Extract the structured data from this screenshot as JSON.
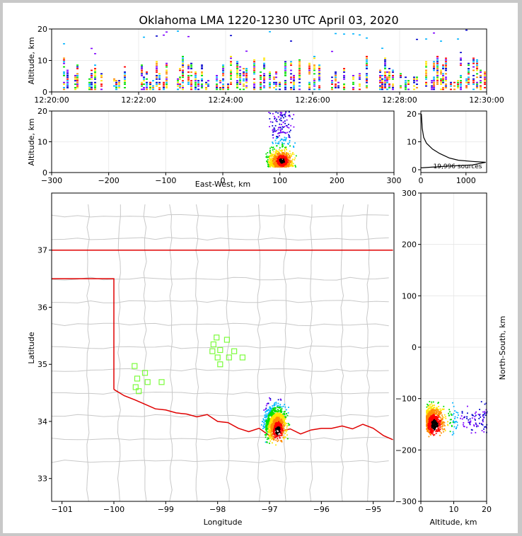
{
  "title": "Oklahoma LMA 1220-1230 UTC April 03, 2020",
  "colors": {
    "frame": "#c8c8c8",
    "state_border": "#e00000",
    "county_line": "#c8c8c8",
    "station": "#7cfc3c",
    "grid": "#e6e6e6",
    "scale": [
      "#0000cc",
      "#7d00ff",
      "#00b4ff",
      "#00e000",
      "#ffe600",
      "#ff8c00",
      "#ff0000",
      "#000000"
    ]
  },
  "panels": {
    "time_height": {
      "ylabel": "Altitude, km",
      "yticks": [
        "0",
        "10",
        "20"
      ],
      "xticks": [
        "12:20:00",
        "12:22:00",
        "12:24:00",
        "12:26:00",
        "12:28:00",
        "12:30:00"
      ]
    },
    "ew_height": {
      "ylabel": "Altitude, km",
      "xlabel": "East-West, km",
      "xticks": [
        "−300",
        "−200",
        "−100",
        "0",
        "100",
        "200",
        "300"
      ],
      "yticks": [
        "0",
        "10",
        "20"
      ]
    },
    "histogram": {
      "xticks": [
        "0",
        "1000"
      ],
      "yticks": [
        "0",
        "10",
        "20"
      ],
      "annotation": "19,996 sources"
    },
    "plan": {
      "xlabel": "Longitude",
      "ylabel": "Latitude",
      "xticks": [
        "−101",
        "−100",
        "−99",
        "−98",
        "−97",
        "−96",
        "−95"
      ],
      "yticks": [
        "33",
        "34",
        "35",
        "36",
        "37"
      ]
    },
    "ns_height": {
      "xlabel": "Altitude, km",
      "ylabel": "North-South, km",
      "xticks": [
        "0",
        "10",
        "20"
      ],
      "yticks": [
        "300",
        "200",
        "100",
        "0",
        "−100",
        "−200",
        "−300"
      ]
    }
  },
  "chart_data": [
    {
      "type": "scatter",
      "panel": "time-height",
      "ylabel": "Altitude, km",
      "xlim": [
        "12:20:00",
        "12:30:00"
      ],
      "ylim": [
        0,
        20
      ],
      "grid": true,
      "description_of_data": "dense columns of VHF sources between 2 and 13 km altitude with sparse sources up to 20 km throughout 12:20–12:30"
    },
    {
      "type": "heatmap",
      "panel": "east-west vs altitude",
      "xlabel": "East-West, km",
      "ylabel": "Altitude, km",
      "xlim": [
        -300,
        300
      ],
      "ylim": [
        0,
        20
      ],
      "grid": true,
      "cluster": {
        "x_range": [
          60,
          140
        ],
        "y_range": [
          1,
          20
        ],
        "peak": {
          "x": 105,
          "y": 4
        }
      }
    },
    {
      "type": "line",
      "panel": "altitude histogram",
      "xlim": [
        0,
        1400
      ],
      "ylim": [
        0,
        21
      ],
      "annotation": "19,996 sources",
      "points": [
        [
          10,
          20
        ],
        [
          30,
          15
        ],
        [
          60,
          12
        ],
        [
          120,
          10
        ],
        [
          250,
          8
        ],
        [
          400,
          6.5
        ],
        [
          600,
          5
        ],
        [
          800,
          4.2
        ],
        [
          1100,
          3.8
        ],
        [
          1380,
          3.5
        ],
        [
          1100,
          2.6
        ],
        [
          600,
          2.2
        ],
        [
          200,
          1.8
        ],
        [
          0,
          1.6
        ]
      ]
    },
    {
      "type": "heatmap",
      "panel": "plan view",
      "xlabel": "Longitude",
      "ylabel": "Latitude",
      "xlim": [
        -101.2,
        -94.6
      ],
      "ylim": [
        32.6,
        38.0
      ],
      "stations": [
        [
          -98.02,
          35.47
        ],
        [
          -97.82,
          35.43
        ],
        [
          -98.08,
          35.35
        ],
        [
          -97.95,
          35.25
        ],
        [
          -98.1,
          35.23
        ],
        [
          -97.68,
          35.23
        ],
        [
          -98.0,
          35.12
        ],
        [
          -97.78,
          35.12
        ],
        [
          -97.52,
          35.12
        ],
        [
          -97.95,
          35.0
        ],
        [
          -99.6,
          34.97
        ],
        [
          -99.4,
          34.85
        ],
        [
          -99.55,
          34.75
        ],
        [
          -99.35,
          34.69
        ],
        [
          -99.08,
          34.69
        ],
        [
          -99.58,
          34.6
        ],
        [
          -99.52,
          34.53
        ]
      ],
      "cluster": {
        "lon_range": [
          -97.3,
          -96.5
        ],
        "lat_range": [
          33.6,
          34.6
        ],
        "peak": {
          "lon": -96.85,
          "lat": 33.85
        }
      }
    },
    {
      "type": "heatmap",
      "panel": "altitude vs north-south",
      "xlabel": "Altitude, km",
      "ylabel": "North-South, km",
      "xlim": [
        0,
        20
      ],
      "ylim": [
        -300,
        300
      ],
      "cluster": {
        "x_range": [
          1,
          20
        ],
        "y_range": [
          -200,
          -75
        ],
        "peak": {
          "x": 4,
          "y": -150
        }
      }
    }
  ]
}
